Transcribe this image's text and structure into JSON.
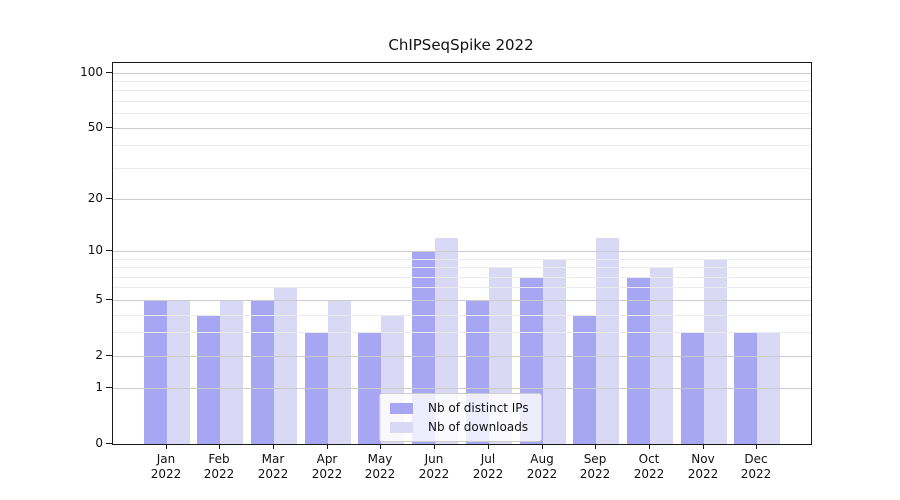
{
  "title": "ChIPSeqSpike 2022",
  "chart_data": {
    "type": "bar",
    "title": "ChIPSeqSpike 2022",
    "categories": [
      "Jan 2022",
      "Feb 2022",
      "Mar 2022",
      "Apr 2022",
      "May 2022",
      "Jun 2022",
      "Jul 2022",
      "Aug 2022",
      "Sep 2022",
      "Oct 2022",
      "Nov 2022",
      "Dec 2022"
    ],
    "series": [
      {
        "name": "Nb of distinct IPs",
        "color": "#a6a6f2",
        "values": [
          5,
          4,
          5,
          3,
          3,
          10,
          5,
          7,
          4,
          7,
          3,
          3
        ]
      },
      {
        "name": "Nb of downloads",
        "color": "#d9d9f6",
        "values": [
          5,
          5,
          6,
          5,
          4,
          12,
          8,
          9,
          12,
          8,
          9,
          3
        ]
      }
    ],
    "xlabel": "",
    "ylabel": "",
    "yscale": "log1p",
    "ylim": [
      0,
      113
    ],
    "y_major_ticks": [
      0,
      1,
      2,
      5,
      10,
      20,
      50,
      100
    ],
    "y_minor_gridlines": [
      3,
      4,
      6,
      7,
      8,
      9,
      30,
      40,
      60,
      70,
      80,
      90
    ],
    "grid": true,
    "legend_position": "lower center",
    "colors": {
      "major_grid": "#cccccc",
      "minor_grid": "#ebebeb",
      "axis": "#1a1a1a",
      "text": "#111111"
    }
  }
}
